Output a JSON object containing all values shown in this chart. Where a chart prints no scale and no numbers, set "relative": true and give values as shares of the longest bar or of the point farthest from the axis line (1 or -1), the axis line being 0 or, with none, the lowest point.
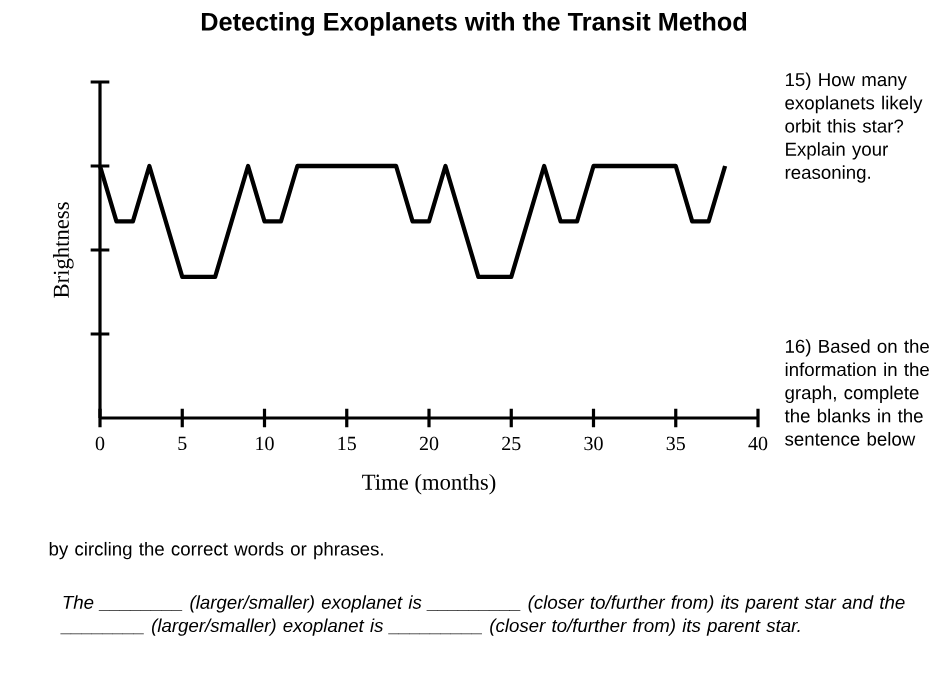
{
  "chart_data": {
    "type": "line",
    "title": "Detecting Exoplanets with the Transit Method",
    "xlabel": "Time (months)",
    "ylabel": "Brightness",
    "relative": true,
    "tick_labels": "x",
    "xlim": [
      0,
      40
    ],
    "xticks": [
      0,
      5,
      10,
      15,
      20,
      25,
      30,
      35,
      40
    ],
    "x": [
      0,
      1,
      2,
      3,
      5,
      7,
      9,
      10,
      11,
      12,
      18,
      19,
      20,
      21,
      23,
      25,
      27,
      28,
      29,
      30,
      35,
      36,
      37,
      38
    ],
    "series": [
      {
        "color": "#000000",
        "values": [
          1,
          0.78,
          0.78,
          1,
          0.56,
          0.56,
          1,
          0.78,
          0.78,
          1,
          1,
          0.78,
          0.78,
          1,
          0.56,
          0.56,
          1,
          0.78,
          0.78,
          1,
          1,
          0.78,
          0.78,
          1
        ]
      }
    ],
    "annotations": [
      "15)  How many exoplanets likely orbit this star?  Explain your reasoning.",
      "16) Based on the information in the graph, complete the blanks in the sentence below",
      "by circling the correct words or phrases.",
      "The ________ (larger/smaller) exoplanet is _________ (closer to/further from) its parent star and the ________ (larger/smaller) exoplanet is _________ (closer to/further from) its parent star."
    ]
  }
}
